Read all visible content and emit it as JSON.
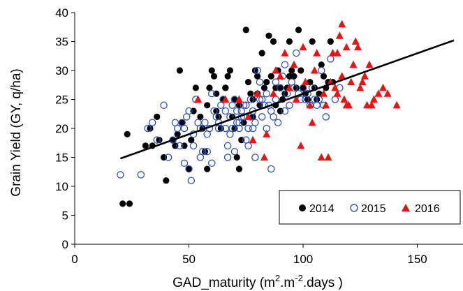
{
  "chart_data": {
    "type": "scatter",
    "title": "",
    "xlabel_main": "GAD_maturity (m",
    "xlabel_sup1": "2",
    "xlabel_mid": ".m",
    "xlabel_sup2": "-2",
    "xlabel_end": ".days )",
    "ylabel": "Grain Yield (GY, q/ha)",
    "xlim": [
      0,
      170
    ],
    "ylim": [
      0,
      40
    ],
    "x_ticks": [
      "0",
      "50",
      "100",
      "150"
    ],
    "x_tick_values": [
      0,
      50,
      100,
      150
    ],
    "y_ticks": [
      "0",
      "5",
      "10",
      "15",
      "20",
      "25",
      "30",
      "35",
      "40"
    ],
    "y_tick_values": [
      0,
      5,
      10,
      15,
      20,
      25,
      30,
      35,
      40
    ],
    "grid": false,
    "legend_position": "bottom-right",
    "trendline": {
      "x": [
        20,
        166
      ],
      "y": [
        14.8,
        35.2
      ],
      "color": "#000000"
    },
    "series": [
      {
        "name": "2014",
        "marker": "filled-circle",
        "color": "#000000",
        "points": [
          [
            21,
            7
          ],
          [
            24,
            7
          ],
          [
            23,
            19
          ],
          [
            31,
            17
          ],
          [
            33,
            20
          ],
          [
            34,
            17
          ],
          [
            36,
            22
          ],
          [
            37,
            18
          ],
          [
            39,
            15
          ],
          [
            40,
            11
          ],
          [
            43,
            18
          ],
          [
            44,
            17
          ],
          [
            45,
            19
          ],
          [
            46,
            30
          ],
          [
            47,
            21
          ],
          [
            48,
            17
          ],
          [
            50,
            13
          ],
          [
            51,
            18
          ],
          [
            52,
            23
          ],
          [
            53,
            27
          ],
          [
            55,
            22
          ],
          [
            56,
            20
          ],
          [
            57,
            16
          ],
          [
            58,
            13
          ],
          [
            59,
            27
          ],
          [
            60,
            30
          ],
          [
            61,
            29
          ],
          [
            62,
            23
          ],
          [
            63,
            22
          ],
          [
            64,
            20
          ],
          [
            65,
            25
          ],
          [
            66,
            27
          ],
          [
            67,
            29
          ],
          [
            68,
            30
          ],
          [
            69,
            22
          ],
          [
            70,
            20
          ],
          [
            71,
            15
          ],
          [
            72,
            13
          ],
          [
            73,
            18
          ],
          [
            74,
            21
          ],
          [
            75,
            37
          ],
          [
            76,
            28
          ],
          [
            77,
            26
          ],
          [
            78,
            25
          ],
          [
            79,
            30
          ],
          [
            80,
            29
          ],
          [
            81,
            24
          ],
          [
            82,
            33
          ],
          [
            83,
            27
          ],
          [
            84,
            28
          ],
          [
            85,
            36
          ],
          [
            86,
            29
          ],
          [
            87,
            35
          ],
          [
            88,
            27
          ],
          [
            89,
            30
          ],
          [
            90,
            27
          ],
          [
            91,
            25
          ],
          [
            92,
            26
          ],
          [
            93,
            27
          ],
          [
            94,
            35
          ],
          [
            95,
            30
          ],
          [
            96,
            29
          ],
          [
            97,
            27
          ],
          [
            98,
            37
          ],
          [
            99,
            30
          ],
          [
            100,
            27
          ],
          [
            101,
            26
          ],
          [
            102,
            25
          ],
          [
            103,
            28
          ],
          [
            104,
            35
          ],
          [
            105,
            27
          ],
          [
            106,
            25
          ],
          [
            107,
            26
          ],
          [
            108,
            31
          ],
          [
            109,
            29
          ],
          [
            110,
            27
          ],
          [
            111,
            28
          ],
          [
            112,
            35
          ],
          [
            113,
            28
          ],
          [
            66,
            27
          ],
          [
            70,
            25
          ],
          [
            72,
            24
          ],
          [
            78,
            22
          ],
          [
            80,
            26
          ],
          [
            88,
            24
          ],
          [
            90,
            23
          ],
          [
            94,
            29
          ],
          [
            58,
            24
          ],
          [
            62,
            26
          ]
        ]
      },
      {
        "name": "2015",
        "marker": "open-circle",
        "color": "#2a52be",
        "points": [
          [
            20,
            12
          ],
          [
            29,
            12
          ],
          [
            32,
            20
          ],
          [
            34,
            21
          ],
          [
            36,
            18
          ],
          [
            39,
            24
          ],
          [
            41,
            15
          ],
          [
            43,
            18
          ],
          [
            44,
            21
          ],
          [
            45,
            20
          ],
          [
            46,
            17
          ],
          [
            47,
            21
          ],
          [
            48,
            20
          ],
          [
            49,
            22
          ],
          [
            50,
            23
          ],
          [
            51,
            11
          ],
          [
            52,
            19
          ],
          [
            53,
            25
          ],
          [
            54,
            21
          ],
          [
            55,
            20
          ],
          [
            56,
            16
          ],
          [
            57,
            21
          ],
          [
            58,
            19
          ],
          [
            59,
            20
          ],
          [
            60,
            26
          ],
          [
            61,
            23
          ],
          [
            62,
            22
          ],
          [
            63,
            21
          ],
          [
            64,
            24
          ],
          [
            65,
            25
          ],
          [
            66,
            20
          ],
          [
            67,
            17
          ],
          [
            68,
            22
          ],
          [
            69,
            24
          ],
          [
            70,
            25
          ],
          [
            71,
            21
          ],
          [
            72,
            20
          ],
          [
            73,
            23
          ],
          [
            74,
            22
          ],
          [
            75,
            18
          ],
          [
            76,
            20
          ],
          [
            77,
            25
          ],
          [
            78,
            23
          ],
          [
            79,
            21
          ],
          [
            80,
            30
          ],
          [
            81,
            28
          ],
          [
            82,
            25
          ],
          [
            83,
            24
          ],
          [
            84,
            26
          ],
          [
            85,
            24
          ],
          [
            86,
            13
          ],
          [
            87,
            22
          ],
          [
            88,
            25
          ],
          [
            89,
            21
          ],
          [
            90,
            27
          ],
          [
            91,
            29
          ],
          [
            92,
            31
          ],
          [
            93,
            26
          ],
          [
            94,
            24
          ],
          [
            95,
            28
          ],
          [
            96,
            27
          ],
          [
            97,
            33
          ],
          [
            98,
            26
          ],
          [
            99,
            25
          ],
          [
            100,
            27
          ],
          [
            101,
            25
          ],
          [
            102,
            26
          ],
          [
            103,
            24
          ],
          [
            104,
            27
          ],
          [
            105,
            25
          ],
          [
            106,
            24
          ],
          [
            107,
            25
          ],
          [
            108,
            30
          ],
          [
            109,
            24
          ],
          [
            110,
            22
          ],
          [
            112,
            32
          ],
          [
            114,
            25
          ],
          [
            116,
            27
          ],
          [
            48,
            14
          ],
          [
            50,
            13
          ],
          [
            52,
            17
          ],
          [
            55,
            15
          ],
          [
            58,
            16
          ],
          [
            60,
            14
          ],
          [
            63,
            20
          ],
          [
            66,
            23
          ],
          [
            68,
            19
          ],
          [
            70,
            16
          ],
          [
            72,
            21
          ],
          [
            74,
            24
          ],
          [
            76,
            17
          ],
          [
            78,
            20
          ],
          [
            79,
            15
          ],
          [
            82,
            22
          ],
          [
            84,
            20
          ],
          [
            86,
            23
          ],
          [
            88,
            28
          ],
          [
            92,
            23
          ],
          [
            67,
            15
          ],
          [
            69,
            20
          ],
          [
            71,
            23
          ],
          [
            73,
            22
          ],
          [
            75,
            24
          ],
          [
            77,
            22
          ],
          [
            81,
            25
          ]
        ]
      },
      {
        "name": "2016",
        "marker": "filled-triangle",
        "color": "#ee1111",
        "points": [
          [
            54,
            25
          ],
          [
            66,
            25
          ],
          [
            72,
            25
          ],
          [
            76,
            22
          ],
          [
            78,
            18
          ],
          [
            80,
            26
          ],
          [
            83,
            15
          ],
          [
            84,
            19
          ],
          [
            87,
            26
          ],
          [
            88,
            30
          ],
          [
            90,
            29
          ],
          [
            92,
            33
          ],
          [
            94,
            27
          ],
          [
            96,
            31
          ],
          [
            97,
            25
          ],
          [
            99,
            17
          ],
          [
            100,
            34
          ],
          [
            101,
            28
          ],
          [
            103,
            24
          ],
          [
            104,
            21
          ],
          [
            105,
            30
          ],
          [
            106,
            33
          ],
          [
            108,
            15
          ],
          [
            109,
            26
          ],
          [
            110,
            24
          ],
          [
            111,
            15
          ],
          [
            112,
            28
          ],
          [
            113,
            33
          ],
          [
            114,
            27
          ],
          [
            115,
            26
          ],
          [
            116,
            36
          ],
          [
            117,
            38
          ],
          [
            118,
            25
          ],
          [
            119,
            34
          ],
          [
            120,
            24
          ],
          [
            121,
            28
          ],
          [
            122,
            31
          ],
          [
            123,
            35
          ],
          [
            124,
            34
          ],
          [
            125,
            27
          ],
          [
            126,
            28
          ],
          [
            127,
            29
          ],
          [
            128,
            24
          ],
          [
            129,
            31
          ],
          [
            130,
            24
          ],
          [
            131,
            25
          ],
          [
            133,
            26
          ],
          [
            135,
            27
          ],
          [
            137,
            26
          ],
          [
            141,
            24
          ],
          [
            115,
            33
          ],
          [
            117,
            29
          ],
          [
            119,
            24
          ]
        ]
      }
    ]
  }
}
